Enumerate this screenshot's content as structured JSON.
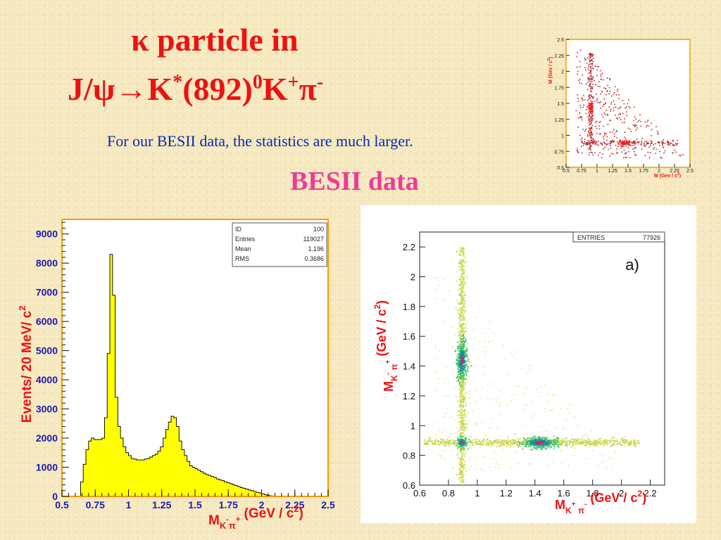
{
  "slide": {
    "title_line1": "κ particle in",
    "title_line2": {
      "part1": "J/ψ→K",
      "sup1": "*",
      "part2": "(892)",
      "sup2": "0",
      "part3": "K",
      "sup3": "+",
      "part4": "π",
      "sup4": "-"
    },
    "subtitle": "For our BESII data, the statistics are much larger.",
    "section_label": "BESII data",
    "colors": {
      "title": "#ee1111",
      "subtitle": "#0a2ab0",
      "section_label": "#f03a9a",
      "histogram_fill": "#ffff00",
      "axis_frame": "#f0a000"
    }
  },
  "chart_data": [
    {
      "type": "bar",
      "name": "histogram",
      "ylabel": "Events/ 20 MeV/ c",
      "ylabel_sup": "2",
      "xlabel_parts": {
        "m": "M",
        "sub": "K",
        "sub_sup1": "-",
        "sub2": "π",
        "sub_sup2": "+",
        "units": "(GeV / c",
        "units_sup": "2",
        "close": ")"
      },
      "xlim": [
        0.5,
        2.5
      ],
      "ylim": [
        0,
        9500
      ],
      "xticks": [
        "0.5",
        "0.75",
        "1",
        "1.25",
        "1.5",
        "1.75",
        "2",
        "2.25",
        "2.5"
      ],
      "yticks": [
        "0",
        "1000",
        "2000",
        "3000",
        "4000",
        "5000",
        "6000",
        "7000",
        "8000",
        "9000"
      ],
      "bin_width": 0.02,
      "x_start": 0.62,
      "values": [
        0,
        500,
        1100,
        1600,
        1900,
        2000,
        1950,
        1950,
        1950,
        2000,
        2700,
        4900,
        8300,
        6900,
        3400,
        2400,
        2000,
        1700,
        1500,
        1400,
        1300,
        1280,
        1250,
        1250,
        1250,
        1280,
        1300,
        1350,
        1400,
        1450,
        1550,
        1700,
        2000,
        2300,
        2550,
        2750,
        2700,
        2400,
        1900,
        1600,
        1400,
        1200,
        1050,
        1000,
        950,
        900,
        850,
        800,
        750,
        720,
        680,
        650,
        600,
        570,
        540,
        500,
        470,
        440,
        400,
        370,
        340,
        300,
        280,
        250,
        220,
        200,
        170,
        140,
        120,
        90,
        60,
        40,
        20,
        10,
        0
      ],
      "stats": [
        {
          "key": "ID",
          "value": "100"
        },
        {
          "key": "Entries",
          "value": "119027"
        },
        {
          "key": "Mean",
          "value": "1.196"
        },
        {
          "key": "RMS",
          "value": "0.3686"
        }
      ]
    },
    {
      "type": "scatter",
      "name": "dalitz-large",
      "ylabel": "M",
      "xlabel": "M",
      "xlim": [
        0.6,
        2.3
      ],
      "ylim": [
        0.6,
        2.3
      ],
      "xticks": [
        "0.6",
        "0.8",
        "1",
        "1.2",
        "1.4",
        "1.6",
        "1.8",
        "2",
        "2.2"
      ],
      "yticks": [
        "0.6",
        "0.8",
        "1",
        "1.2",
        "1.4",
        "1.6",
        "1.8",
        "2",
        "2.2"
      ],
      "annotation": "a)",
      "entries_label": "ENTRIES",
      "entries_value": "77926",
      "bands": [
        {
          "axis": "vertical",
          "center": 0.89,
          "range": [
            0.6,
            2.2
          ]
        },
        {
          "axis": "horizontal",
          "center": 0.89,
          "range": [
            0.6,
            2.1
          ]
        }
      ],
      "hotspots": [
        {
          "x": 0.89,
          "y": 1.44
        },
        {
          "x": 1.43,
          "y": 0.89
        },
        {
          "x": 0.89,
          "y": 0.89
        }
      ]
    },
    {
      "type": "scatter",
      "name": "dalitz-small",
      "xlim": [
        0.5,
        2.5
      ],
      "ylim": [
        0.5,
        2.5
      ],
      "xticks": [
        "0.5",
        "0.75",
        "1",
        "1.25",
        "1.5",
        "1.75",
        "2",
        "2.25",
        "2.5"
      ],
      "yticks": [
        "0.5",
        "0.75",
        "1",
        "1.25",
        "1.5",
        "1.75",
        "2",
        "2.25",
        "2.5"
      ],
      "xlabel": "M",
      "ylabel": "M",
      "xunits": "(Gev / c",
      "yunits": "(Gev / c",
      "units_sup": "2",
      "close": ")"
    }
  ]
}
